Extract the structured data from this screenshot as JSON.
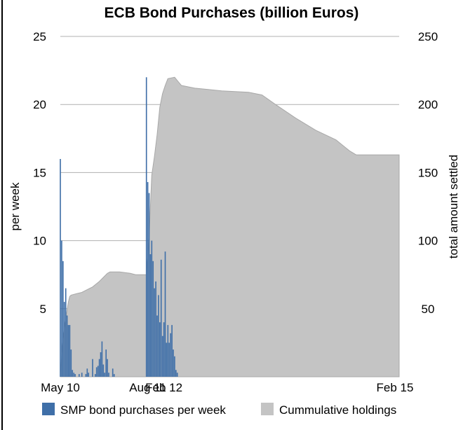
{
  "chart_data": {
    "type": "bar+area",
    "title": "ECB Bond Purchases (billion Euros)",
    "left_axis": {
      "label": "per week",
      "ticks": [
        5,
        10,
        15,
        20,
        25
      ],
      "range": [
        0,
        25
      ]
    },
    "right_axis": {
      "label": "total amount settled",
      "ticks": [
        50,
        100,
        150,
        200,
        250
      ],
      "range": [
        0,
        250
      ]
    },
    "x_axis": {
      "labels": [
        "May 10",
        "Aug 11",
        "Feb 12",
        "Feb 15"
      ],
      "label_weeks": [
        0,
        65,
        77,
        252
      ],
      "range_weeks": [
        0,
        252
      ]
    },
    "grid": true,
    "legend": {
      "position": "bottom",
      "items": [
        {
          "name": "SMP bond purchases per week",
          "color": "#3f6fa8"
        },
        {
          "name": "Cummulative holdings",
          "color": "#c4c4c4"
        }
      ]
    },
    "colors": {
      "area": "#c4c4c4",
      "area_stroke": "#a8a8a8",
      "bars": "#3f6fa8",
      "grid": "#b0b0b0"
    },
    "series": [
      {
        "name": "SMP bond purchases per week",
        "axis": "left",
        "type": "bar",
        "weeks": [
          0,
          1,
          2,
          3,
          4,
          5,
          6,
          7,
          8,
          9,
          10,
          11,
          14,
          16,
          19,
          20,
          21,
          24,
          26,
          27,
          28,
          29,
          30,
          31,
          32,
          33,
          34,
          35,
          36,
          39,
          40,
          64,
          65,
          66,
          67,
          68,
          69,
          70,
          71,
          72,
          73,
          74,
          75,
          76,
          77,
          78,
          79,
          80,
          81,
          82,
          83,
          84,
          85,
          86,
          87
        ],
        "values": [
          16.0,
          10.0,
          8.5,
          5.5,
          6.5,
          4.5,
          3.8,
          3.8,
          2.0,
          0.5,
          0.3,
          0.2,
          0.2,
          0.3,
          0.2,
          0.6,
          0.3,
          1.3,
          0.2,
          0.7,
          0.8,
          1.3,
          1.8,
          2.6,
          0.9,
          0.3,
          2.0,
          1.3,
          0.3,
          0.6,
          0.2,
          22.0,
          14.3,
          13.5,
          9.0,
          10.0,
          8.5,
          6.5,
          7.0,
          4.5,
          6.0,
          4.0,
          8.6,
          3.0,
          4.0,
          9.2,
          2.5,
          3.8,
          2.5,
          3.2,
          3.8,
          2.0,
          1.5,
          0.5,
          0.3
        ]
      },
      {
        "name": "Cummulative holdings",
        "axis": "right",
        "type": "area",
        "points": [
          [
            0,
            0
          ],
          [
            1,
            16.5
          ],
          [
            2,
            27
          ],
          [
            3,
            35
          ],
          [
            4,
            42
          ],
          [
            5,
            49
          ],
          [
            6,
            55
          ],
          [
            7,
            59
          ],
          [
            8,
            60
          ],
          [
            12,
            61
          ],
          [
            16,
            62
          ],
          [
            20,
            64
          ],
          [
            24,
            66
          ],
          [
            29,
            70
          ],
          [
            32,
            73
          ],
          [
            35,
            76
          ],
          [
            37,
            77
          ],
          [
            44,
            77
          ],
          [
            52,
            76
          ],
          [
            56,
            75
          ],
          [
            64,
            75
          ],
          [
            65,
            88
          ],
          [
            66,
            102
          ],
          [
            67,
            125
          ],
          [
            68,
            148
          ],
          [
            70,
            162
          ],
          [
            72,
            178
          ],
          [
            74,
            198
          ],
          [
            76,
            208
          ],
          [
            78,
            214
          ],
          [
            80,
            219
          ],
          [
            85,
            220
          ],
          [
            90,
            214
          ],
          [
            100,
            212
          ],
          [
            110,
            211
          ],
          [
            120,
            210
          ],
          [
            140,
            209
          ],
          [
            150,
            207
          ],
          [
            160,
            200
          ],
          [
            175,
            190
          ],
          [
            190,
            181
          ],
          [
            205,
            174
          ],
          [
            210,
            170
          ],
          [
            215,
            166
          ],
          [
            220,
            163
          ],
          [
            252,
            163
          ]
        ]
      }
    ]
  }
}
